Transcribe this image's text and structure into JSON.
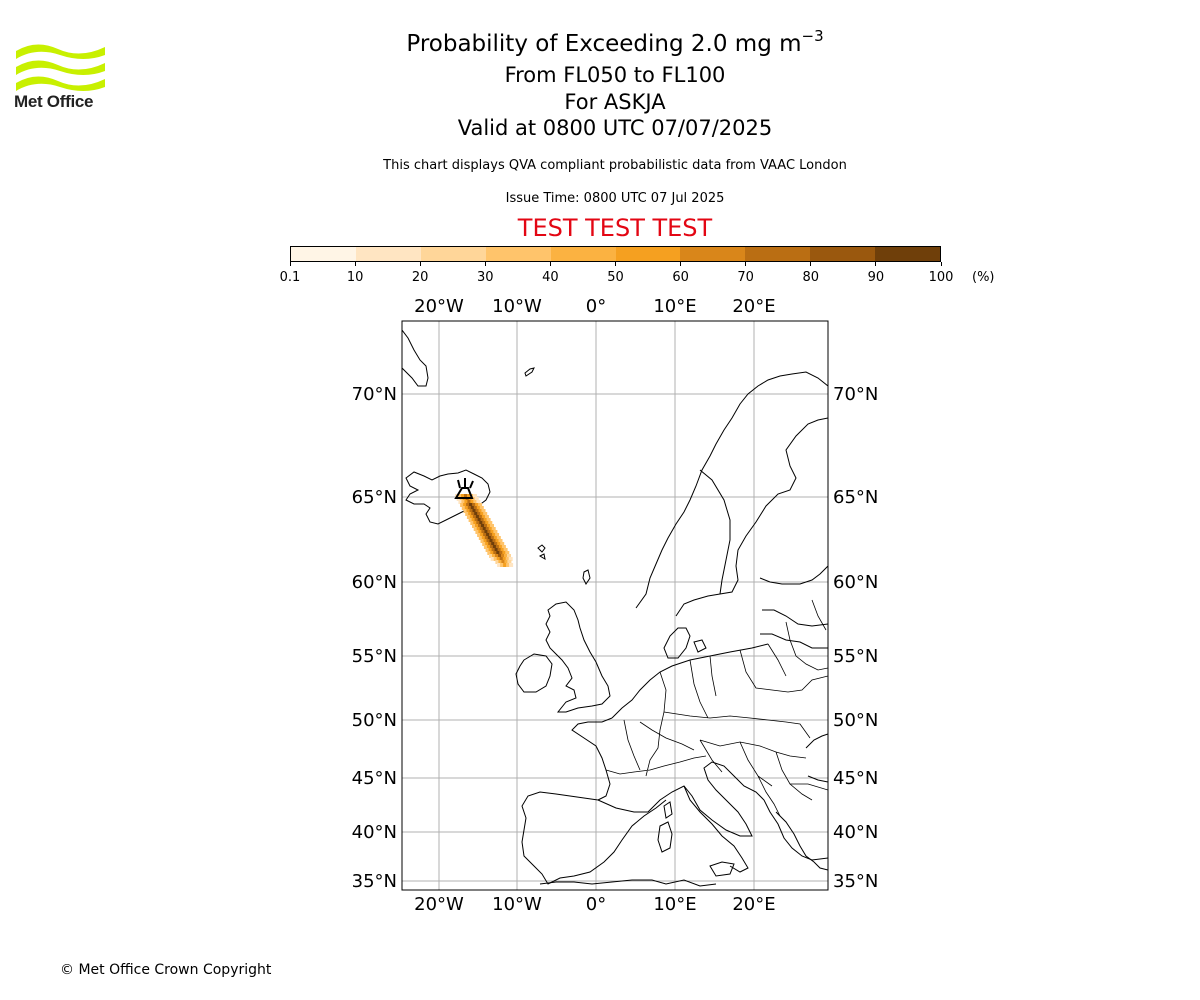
{
  "logo": {
    "text": "Met Office",
    "color": "#c8f000"
  },
  "title": {
    "main": "Probability of Exceeding 2.0 mg m",
    "superscript": "−3"
  },
  "subtitle": {
    "levels": "From FL050 to FL100",
    "volcano": "For ASKJA",
    "valid": "Valid at 0800 UTC 07/07/2025"
  },
  "note": "This chart displays QVA compliant probabilistic data from VAAC London",
  "issue_time": "Issue Time: 0800 UTC 07 Jul 2025",
  "test_banner": {
    "text": "TEST TEST TEST",
    "color": "#e30613"
  },
  "colorbar": {
    "unit": "(%)",
    "ticks": [
      "0.1",
      "10",
      "20",
      "30",
      "40",
      "50",
      "60",
      "70",
      "80",
      "90",
      "100"
    ],
    "colors": [
      "#fff5e6",
      "#ffe5c2",
      "#ffd699",
      "#ffc46b",
      "#fbb241",
      "#f5a020",
      "#d9861a",
      "#ba6e13",
      "#9a580e",
      "#6f3f0a"
    ]
  },
  "map": {
    "lon_labels": [
      "20°W",
      "10°W",
      "0°",
      "10°E",
      "20°E"
    ],
    "lat_labels": [
      "70°N",
      "65°N",
      "60°N",
      "55°N",
      "50°N",
      "45°N",
      "40°N",
      "35°N"
    ],
    "volcano_name": "ASKJA",
    "grid": true
  },
  "footer": {
    "copyright": "© Met Office Crown Copyright"
  }
}
